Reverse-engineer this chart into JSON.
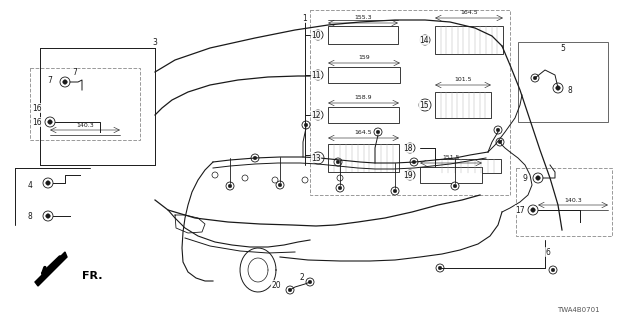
{
  "bg_color": "#ffffff",
  "fig_width": 6.4,
  "fig_height": 3.2,
  "dpi": 100,
  "part_number": "TWA4B0701",
  "dark": "#1a1a1a",
  "gray": "#555555",
  "lgray": "#aaaaaa",
  "dgray": "#333333"
}
